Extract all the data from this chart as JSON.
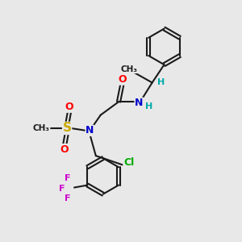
{
  "bg_color": "#e8e8e8",
  "bond_color": "#1a1a1a",
  "atom_colors": {
    "N": "#0000cc",
    "O": "#ff0000",
    "S": "#ccaa00",
    "Cl": "#00aa00",
    "F": "#cc00cc",
    "C": "#1a1a1a",
    "H": "#00aaaa"
  },
  "font_size": 9
}
